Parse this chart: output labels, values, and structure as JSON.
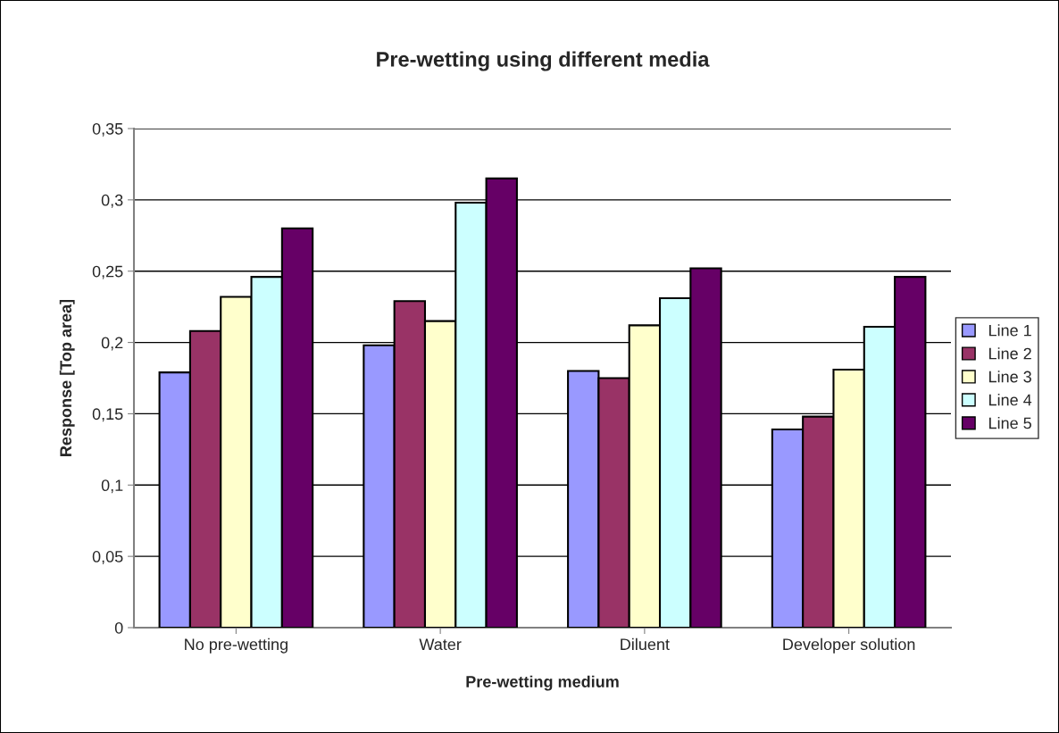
{
  "chart_data": {
    "type": "bar",
    "title": "Pre-wetting using different media",
    "xlabel": "Pre-wetting medium",
    "ylabel": "Response [Top area]",
    "categories": [
      "No pre-wetting",
      "Water",
      "Diluent",
      "Developer solution"
    ],
    "series": [
      {
        "name": "Line 1",
        "color": "#9999ff",
        "values": [
          0.179,
          0.198,
          0.18,
          0.139
        ]
      },
      {
        "name": "Line 2",
        "color": "#993366",
        "values": [
          0.208,
          0.229,
          0.175,
          0.148
        ]
      },
      {
        "name": "Line 3",
        "color": "#ffffcc",
        "values": [
          0.232,
          0.215,
          0.212,
          0.181
        ]
      },
      {
        "name": "Line 4",
        "color": "#ccffff",
        "values": [
          0.246,
          0.298,
          0.231,
          0.211
        ]
      },
      {
        "name": "Line 5",
        "color": "#660066",
        "values": [
          0.28,
          0.315,
          0.252,
          0.246
        ]
      }
    ],
    "ylim": [
      0,
      0.35
    ],
    "yticks": [
      {
        "value": 0,
        "label": "0"
      },
      {
        "value": 0.05,
        "label": "0,05"
      },
      {
        "value": 0.1,
        "label": "0,1"
      },
      {
        "value": 0.15,
        "label": "0,15"
      },
      {
        "value": 0.2,
        "label": "0,2"
      },
      {
        "value": 0.25,
        "label": "0,25"
      },
      {
        "value": 0.3,
        "label": "0,3"
      },
      {
        "value": 0.35,
        "label": "0,35"
      }
    ],
    "grid": "y",
    "legend": "right"
  }
}
